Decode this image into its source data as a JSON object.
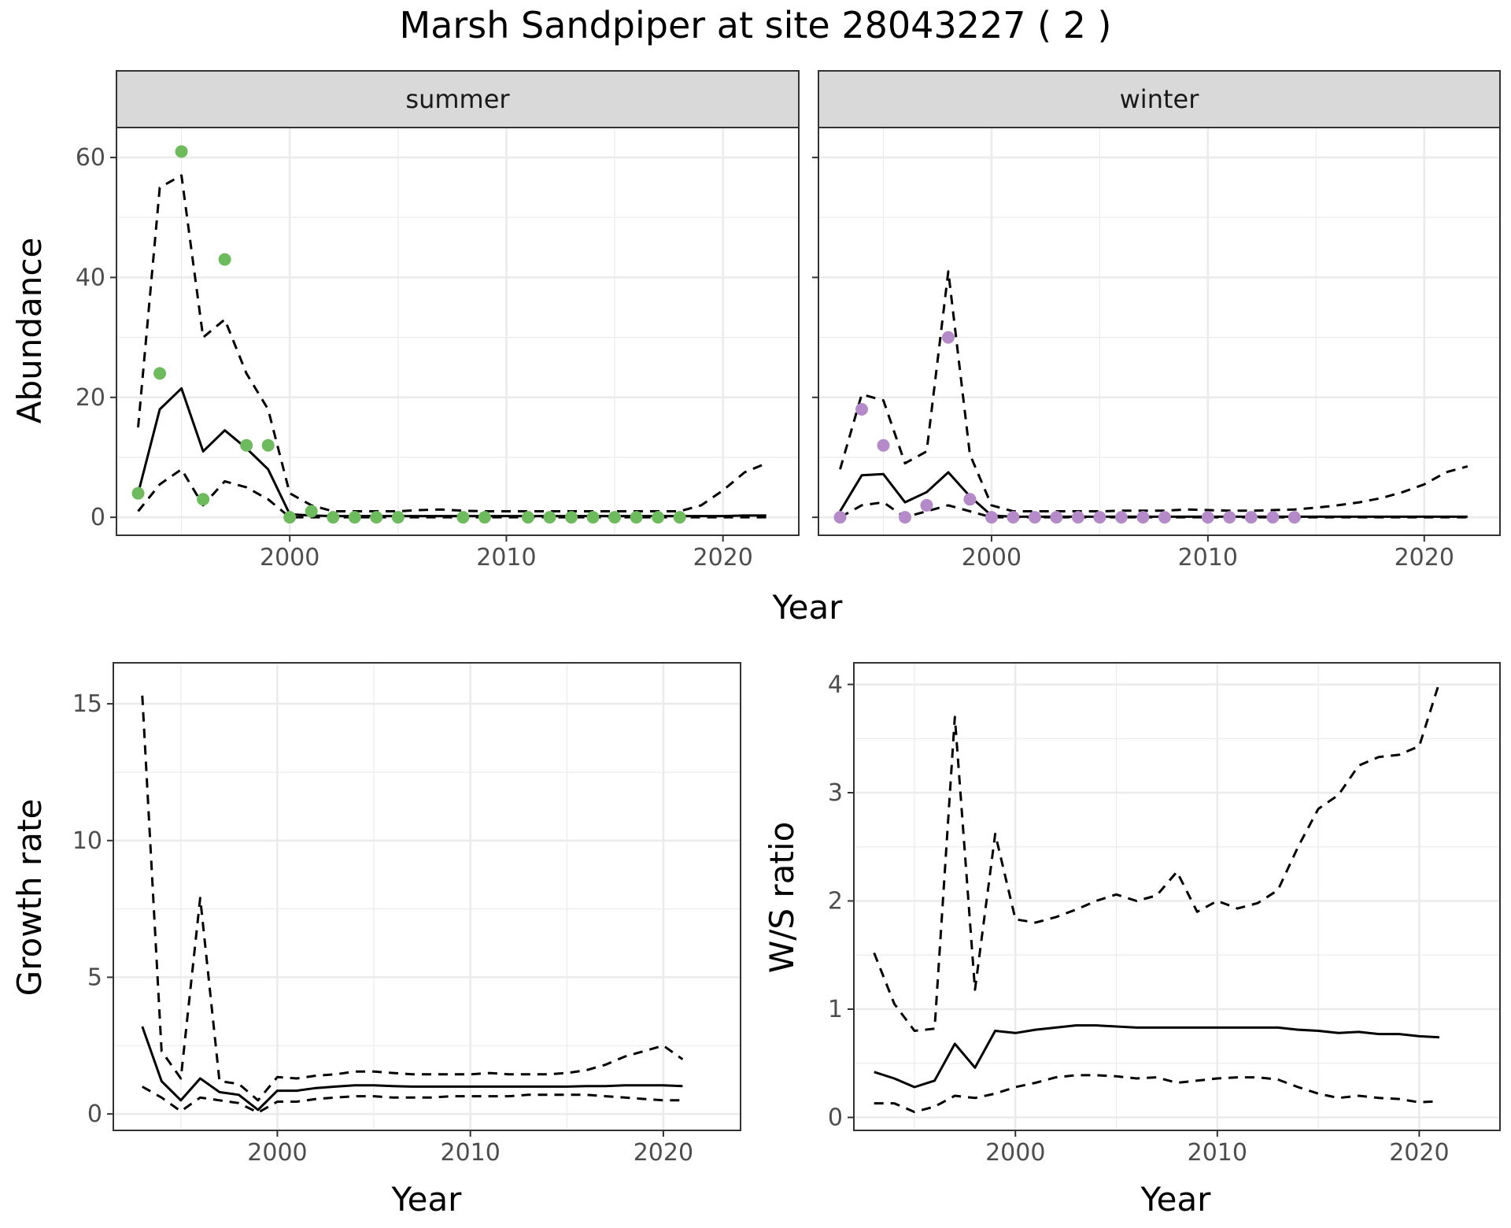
{
  "figure_title": "Marsh Sandpiper at site 28043227 ( 2 )",
  "colors": {
    "summer_points": "#6dbb5c",
    "winter_points": "#b48bc8",
    "lines": "#000000",
    "strip_fill": "#d9d9d9",
    "grid": "#ebebeb",
    "panel_border": "#333333"
  },
  "chart_data": [
    {
      "type": "line",
      "facet": "summer",
      "xlabel": "Year",
      "ylabel": "Abundance",
      "xlim": [
        1992,
        2023.5
      ],
      "ylim": [
        -3,
        65
      ],
      "x_ticks": [
        2000,
        2010,
        2020
      ],
      "y_ticks": [
        0,
        20,
        40,
        60
      ],
      "grid": true,
      "observed_points": {
        "x": [
          1993,
          1994,
          1995,
          1996,
          1997,
          1998,
          1999,
          2000,
          2001,
          2002,
          2003,
          2004,
          2005,
          2008,
          2009,
          2011,
          2012,
          2013,
          2014,
          2015,
          2016,
          2017,
          2018
        ],
        "y": [
          4,
          24,
          61,
          3,
          43,
          12,
          12,
          0,
          1,
          0,
          0,
          0,
          0,
          0,
          0,
          0,
          0,
          0,
          0,
          0,
          0,
          0,
          0
        ]
      },
      "series": [
        {
          "style": "solid",
          "x": [
            1993,
            1994,
            1995,
            1996,
            1997,
            1998,
            1999,
            2000,
            2001,
            2002,
            2003,
            2004,
            2005,
            2006,
            2007,
            2008,
            2009,
            2010,
            2011,
            2012,
            2013,
            2014,
            2015,
            2016,
            2017,
            2018,
            2019,
            2020,
            2021,
            2022
          ],
          "y": [
            4,
            18,
            21.5,
            11,
            14.5,
            11.5,
            8,
            0.5,
            0.3,
            0.2,
            0.2,
            0.2,
            0.2,
            0.2,
            0.2,
            0.2,
            0.2,
            0.2,
            0.2,
            0.2,
            0.2,
            0.2,
            0.2,
            0.2,
            0.2,
            0.2,
            0.2,
            0.2,
            0.3,
            0.3
          ]
        },
        {
          "style": "dashed",
          "x": [
            1993,
            1994,
            1995,
            1996,
            1997,
            1998,
            1999,
            2000,
            2001,
            2002,
            2003,
            2004,
            2005,
            2006,
            2007,
            2008,
            2009,
            2010,
            2011,
            2012,
            2013,
            2014,
            2015,
            2016,
            2017,
            2018,
            2019,
            2020,
            2021,
            2022
          ],
          "y": [
            15,
            55,
            57,
            30,
            33,
            24,
            18,
            4,
            2,
            1,
            1,
            1,
            1,
            1.2,
            1.3,
            1.1,
            1,
            1,
            1,
            1,
            1,
            1,
            1,
            1,
            1,
            1,
            2,
            4.5,
            7.5,
            9
          ]
        },
        {
          "style": "dashed",
          "x": [
            1993,
            1994,
            1995,
            1996,
            1997,
            1998,
            1999,
            2000,
            2001,
            2002,
            2003,
            2004,
            2005,
            2006,
            2007,
            2008,
            2009,
            2010,
            2011,
            2012,
            2013,
            2014,
            2015,
            2016,
            2017,
            2018,
            2019,
            2020,
            2021,
            2022
          ],
          "y": [
            1,
            5.5,
            8,
            2,
            6,
            5,
            3,
            0,
            0,
            0,
            0,
            0,
            0,
            0,
            0,
            0,
            0,
            0,
            0,
            0,
            0,
            0,
            0,
            0,
            0,
            0,
            0,
            0,
            0,
            0
          ]
        }
      ]
    },
    {
      "type": "line",
      "facet": "winter",
      "xlabel": "Year",
      "ylabel": "",
      "xlim": [
        1992,
        2023.5
      ],
      "ylim": [
        -3,
        65
      ],
      "x_ticks": [
        2000,
        2010,
        2020
      ],
      "y_ticks": [
        0,
        20,
        40,
        60
      ],
      "grid": true,
      "observed_points": {
        "x": [
          1993,
          1994,
          1995,
          1996,
          1997,
          1998,
          1999,
          2000,
          2001,
          2002,
          2003,
          2004,
          2005,
          2006,
          2007,
          2008,
          2010,
          2011,
          2012,
          2013,
          2014
        ],
        "y": [
          0,
          18,
          12,
          0,
          2,
          30,
          3,
          0,
          0,
          0,
          0,
          0,
          0,
          0,
          0,
          0,
          0,
          0,
          0,
          0,
          0
        ]
      },
      "series": [
        {
          "style": "solid",
          "x": [
            1993,
            1994,
            1995,
            1996,
            1997,
            1998,
            1999,
            2000,
            2001,
            2002,
            2003,
            2004,
            2005,
            2006,
            2007,
            2008,
            2009,
            2010,
            2011,
            2012,
            2013,
            2014,
            2015,
            2016,
            2017,
            2018,
            2019,
            2020,
            2021,
            2022
          ],
          "y": [
            1,
            7,
            7.2,
            2.5,
            4.2,
            7.5,
            3.5,
            0.3,
            0.1,
            0.1,
            0.1,
            0.1,
            0.1,
            0.1,
            0.1,
            0.1,
            0.1,
            0.1,
            0.1,
            0.1,
            0.1,
            0.1,
            0.1,
            0.1,
            0.1,
            0.1,
            0.1,
            0.1,
            0.1,
            0.1
          ]
        },
        {
          "style": "dashed",
          "x": [
            1993,
            1994,
            1995,
            1996,
            1997,
            1998,
            1999,
            2000,
            2001,
            2002,
            2003,
            2004,
            2005,
            2006,
            2007,
            2008,
            2009,
            2010,
            2011,
            2012,
            2013,
            2014,
            2015,
            2016,
            2017,
            2018,
            2019,
            2020,
            2021,
            2022
          ],
          "y": [
            8,
            20.5,
            19.5,
            9,
            11,
            41,
            10.5,
            2,
            1,
            1,
            1,
            1,
            1,
            1.1,
            1.1,
            1.1,
            1.3,
            1.2,
            1.1,
            1.1,
            1.2,
            1.3,
            1.6,
            2,
            2.5,
            3.2,
            4.2,
            5.5,
            7.5,
            8.5
          ]
        },
        {
          "style": "dashed",
          "x": [
            1993,
            1994,
            1995,
            1996,
            1997,
            1998,
            1999,
            2000,
            2001,
            2002,
            2003,
            2004,
            2005,
            2006,
            2007,
            2008,
            2009,
            2010,
            2011,
            2012,
            2013,
            2014,
            2015,
            2016,
            2017,
            2018,
            2019,
            2020,
            2021,
            2022
          ],
          "y": [
            0,
            2,
            2.5,
            0,
            1,
            2,
            1,
            0,
            0,
            0,
            0,
            0,
            0,
            0,
            0,
            0,
            0,
            0,
            0,
            0,
            0,
            0,
            0,
            0,
            0,
            0,
            0,
            0,
            0,
            0
          ]
        }
      ]
    },
    {
      "type": "line",
      "xlabel": "Year",
      "ylabel": "Growth rate",
      "xlim": [
        1991.5,
        2024
      ],
      "ylim": [
        -0.6,
        16.5
      ],
      "x_ticks": [
        2000,
        2010,
        2020
      ],
      "y_ticks": [
        0,
        5,
        10,
        15
      ],
      "grid": true,
      "series": [
        {
          "style": "solid",
          "x": [
            1993,
            1994,
            1995,
            1996,
            1997,
            1998,
            1999,
            2000,
            2001,
            2002,
            2003,
            2004,
            2005,
            2006,
            2007,
            2008,
            2009,
            2010,
            2011,
            2012,
            2013,
            2014,
            2015,
            2016,
            2017,
            2018,
            2019,
            2020,
            2021
          ],
          "y": [
            3.2,
            1.2,
            0.5,
            1.3,
            0.8,
            0.7,
            0.15,
            0.85,
            0.85,
            0.95,
            1.0,
            1.05,
            1.05,
            1.02,
            1.0,
            1.0,
            1.0,
            1.0,
            1.0,
            1.0,
            1.0,
            1.0,
            1.0,
            1.02,
            1.02,
            1.05,
            1.05,
            1.05,
            1.02
          ]
        },
        {
          "style": "dashed",
          "x": [
            1993,
            1994,
            1995,
            1996,
            1997,
            1998,
            1999,
            2000,
            2001,
            2002,
            2003,
            2004,
            2005,
            2006,
            2007,
            2008,
            2009,
            2010,
            2011,
            2012,
            2013,
            2014,
            2015,
            2016,
            2017,
            2018,
            2019,
            2020,
            2021
          ],
          "y": [
            15.3,
            2.3,
            1.3,
            7.9,
            1.2,
            1.1,
            0.5,
            1.35,
            1.3,
            1.4,
            1.45,
            1.55,
            1.55,
            1.5,
            1.45,
            1.45,
            1.45,
            1.45,
            1.5,
            1.45,
            1.45,
            1.45,
            1.5,
            1.6,
            1.8,
            2.1,
            2.3,
            2.5,
            2.0
          ]
        },
        {
          "style": "dashed",
          "x": [
            1993,
            1994,
            1995,
            1996,
            1997,
            1998,
            1999,
            2000,
            2001,
            2002,
            2003,
            2004,
            2005,
            2006,
            2007,
            2008,
            2009,
            2010,
            2011,
            2012,
            2013,
            2014,
            2015,
            2016,
            2017,
            2018,
            2019,
            2020,
            2021
          ],
          "y": [
            1.0,
            0.6,
            0.1,
            0.6,
            0.5,
            0.4,
            0.05,
            0.45,
            0.45,
            0.55,
            0.6,
            0.65,
            0.65,
            0.6,
            0.6,
            0.6,
            0.65,
            0.65,
            0.65,
            0.65,
            0.7,
            0.7,
            0.7,
            0.7,
            0.65,
            0.6,
            0.55,
            0.5,
            0.5
          ]
        }
      ]
    },
    {
      "type": "line",
      "xlabel": "Year",
      "ylabel": "W/S ratio",
      "xlim": [
        1992,
        2024
      ],
      "ylim": [
        -0.12,
        4.2
      ],
      "x_ticks": [
        2000,
        2010,
        2020
      ],
      "y_ticks": [
        0,
        1,
        2,
        3,
        4
      ],
      "grid": true,
      "series": [
        {
          "style": "solid",
          "x": [
            1993,
            1994,
            1995,
            1996,
            1997,
            1998,
            1999,
            2000,
            2001,
            2002,
            2003,
            2004,
            2005,
            2006,
            2007,
            2008,
            2009,
            2010,
            2011,
            2012,
            2013,
            2014,
            2015,
            2016,
            2017,
            2018,
            2019,
            2020,
            2021
          ],
          "y": [
            0.42,
            0.36,
            0.28,
            0.34,
            0.68,
            0.46,
            0.8,
            0.78,
            0.81,
            0.83,
            0.85,
            0.85,
            0.84,
            0.83,
            0.83,
            0.83,
            0.83,
            0.83,
            0.83,
            0.83,
            0.83,
            0.81,
            0.8,
            0.78,
            0.79,
            0.77,
            0.77,
            0.75,
            0.74
          ]
        },
        {
          "style": "dashed",
          "x": [
            1993,
            1994,
            1995,
            1996,
            1997,
            1998,
            1999,
            2000,
            2001,
            2002,
            2003,
            2004,
            2005,
            2006,
            2007,
            2008,
            2009,
            2010,
            2011,
            2012,
            2013,
            2014,
            2015,
            2016,
            2017,
            2018,
            2019,
            2020,
            2021
          ],
          "y": [
            1.52,
            1.05,
            0.8,
            0.82,
            3.7,
            1.18,
            2.62,
            1.83,
            1.8,
            1.85,
            1.92,
            2.0,
            2.06,
            2.0,
            2.05,
            2.27,
            1.9,
            2.0,
            1.93,
            1.98,
            2.1,
            2.5,
            2.85,
            2.98,
            3.25,
            3.33,
            3.35,
            3.43,
            4.02
          ]
        },
        {
          "style": "dashed",
          "x": [
            1993,
            1994,
            1995,
            1996,
            1997,
            1998,
            1999,
            2000,
            2001,
            2002,
            2003,
            2004,
            2005,
            2006,
            2007,
            2008,
            2009,
            2010,
            2011,
            2012,
            2013,
            2014,
            2015,
            2016,
            2017,
            2018,
            2019,
            2020,
            2021
          ],
          "y": [
            0.13,
            0.13,
            0.05,
            0.1,
            0.2,
            0.18,
            0.22,
            0.28,
            0.32,
            0.37,
            0.39,
            0.39,
            0.38,
            0.36,
            0.37,
            0.32,
            0.34,
            0.36,
            0.37,
            0.37,
            0.35,
            0.28,
            0.22,
            0.18,
            0.2,
            0.18,
            0.17,
            0.14,
            0.15
          ]
        }
      ]
    }
  ]
}
